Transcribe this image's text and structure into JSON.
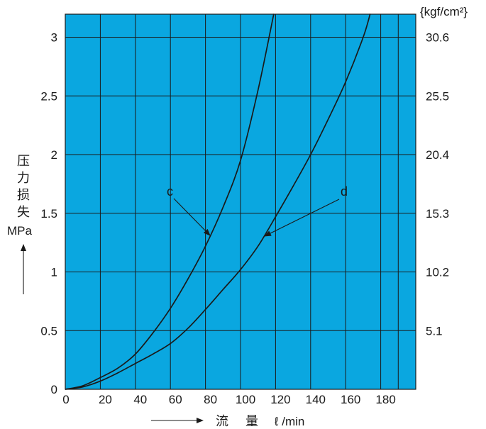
{
  "chart_data": {
    "type": "line",
    "background_color": "#0aa7e0",
    "line_color": "#1a1a1a",
    "grid": true,
    "x_ticks": [
      "0",
      "20",
      "40",
      "60",
      "80",
      "100",
      "120",
      "140",
      "160",
      "180"
    ],
    "xlim": [
      0,
      200
    ],
    "y_left_ticks": [
      "0",
      "0.5",
      "1",
      "1.5",
      "2",
      "2.5",
      "3"
    ],
    "y_right_ticks": [
      "5.1",
      "10.2",
      "15.3",
      "20.4",
      "25.5",
      "30.6"
    ],
    "ylim": [
      0,
      3.2
    ],
    "xlabel_chars": [
      "流",
      "量"
    ],
    "xlabel_unit": "ℓ /min",
    "ylabel_chars": [
      "压",
      "力",
      "损",
      "失"
    ],
    "ylabel_unit": "MPa",
    "y_right_unit": "{kgf/cm²}",
    "series": [
      {
        "name": "c",
        "x": [
          0,
          10,
          20,
          30,
          40,
          50,
          60,
          70,
          80,
          90,
          100,
          110,
          119
        ],
        "y": [
          0,
          0.03,
          0.1,
          0.18,
          0.3,
          0.48,
          0.69,
          0.94,
          1.22,
          1.55,
          1.95,
          2.55,
          3.2
        ]
      },
      {
        "name": "d",
        "x": [
          0,
          10,
          20,
          30,
          40,
          50,
          60,
          70,
          80,
          90,
          100,
          110,
          120,
          130,
          140,
          150,
          160,
          170,
          174
        ],
        "y": [
          0,
          0.02,
          0.07,
          0.14,
          0.22,
          0.3,
          0.39,
          0.52,
          0.68,
          0.85,
          1.02,
          1.22,
          1.47,
          1.73,
          2.0,
          2.3,
          2.62,
          3.0,
          3.2
        ]
      }
    ]
  }
}
